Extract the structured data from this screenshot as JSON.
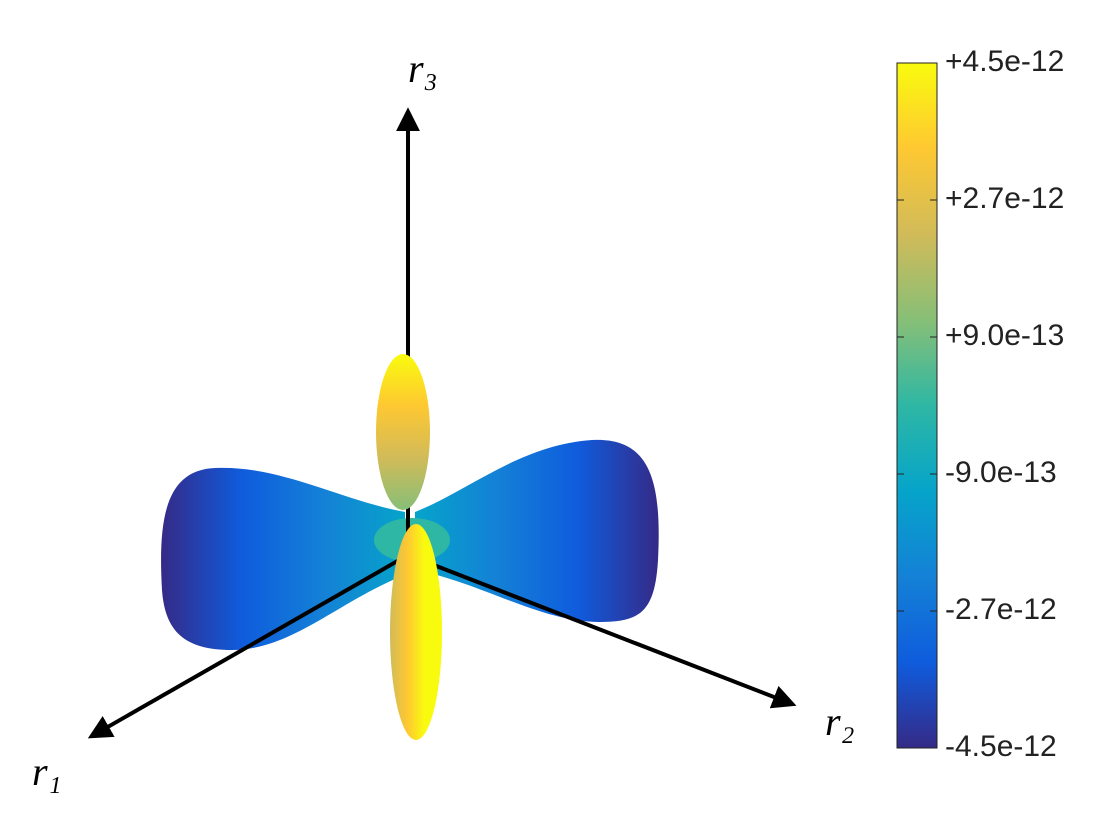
{
  "chart_data": {
    "type": "surface",
    "xlabel": "r₁",
    "ylabel": "r₂",
    "zlabel": "r₃",
    "colormap": [
      "#352a87",
      "#0f5cdd",
      "#1481d6",
      "#06a4ca",
      "#2eb7a4",
      "#87bf77",
      "#d1bb59",
      "#fec832",
      "#f9fb0e"
    ],
    "clim": [
      -4.5e-12,
      4.5e-12
    ],
    "cticks": [
      {
        "value": -4.5e-12,
        "label": "-4.5e-12"
      },
      {
        "value": -2.7e-12,
        "label": "-2.7e-12"
      },
      {
        "value": -9e-13,
        "label": "-9.0e-13"
      },
      {
        "value": 9e-13,
        "label": "+9.0e-13"
      },
      {
        "value": 2.7e-12,
        "label": "+2.7e-12"
      },
      {
        "value": 4.5e-12,
        "label": "+4.5e-12"
      }
    ]
  }
}
